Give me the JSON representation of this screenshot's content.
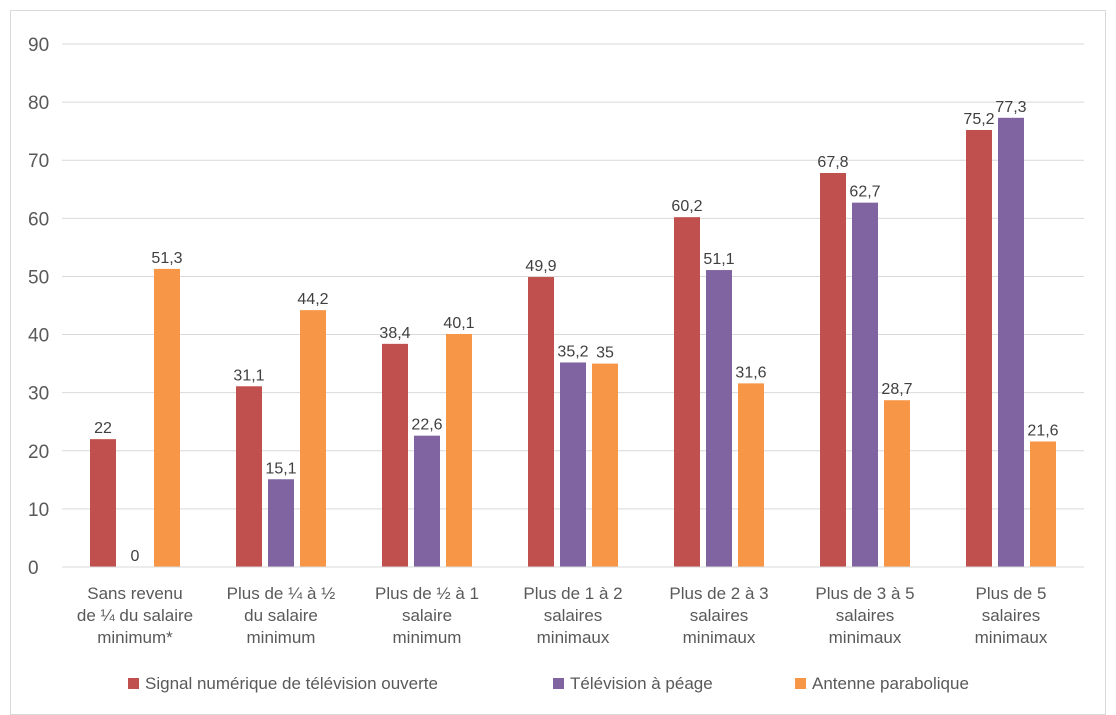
{
  "chart_data": {
    "type": "bar",
    "categories": [
      [
        "Sans revenu",
        "de ¼ du salaire",
        "minimum*"
      ],
      [
        "Plus de ¼ à ½",
        "du salaire",
        "minimum"
      ],
      [
        "Plus de ½ à 1",
        "salaire",
        "minimum"
      ],
      [
        "Plus de 1 à 2",
        "salaires",
        "minimaux"
      ],
      [
        "Plus de 2 à 3",
        "salaires",
        "minimaux"
      ],
      [
        "Plus de 3 à 5",
        "salaires",
        "minimaux"
      ],
      [
        "Plus de 5",
        "salaires",
        "minimaux"
      ]
    ],
    "series": [
      {
        "name": "Signal numérique de télévision ouverte",
        "color": "#c0504d",
        "values": [
          22,
          31.1,
          38.4,
          49.9,
          60.2,
          67.8,
          75.2
        ],
        "labels": [
          "22",
          "31,1",
          "38,4",
          "49,9",
          "60,2",
          "67,8",
          "75,2"
        ]
      },
      {
        "name": "Télévision à péage",
        "color": "#8064a2",
        "values": [
          0,
          15.1,
          22.6,
          35.2,
          51.1,
          62.7,
          77.3
        ],
        "labels": [
          "0",
          "15,1",
          "22,6",
          "35,2",
          "51,1",
          "62,7",
          "77,3"
        ]
      },
      {
        "name": "Antenne parabolique",
        "color": "#f79646",
        "values": [
          51.3,
          44.2,
          40.1,
          35,
          31.6,
          28.7,
          21.6
        ],
        "labels": [
          "51,3",
          "44,2",
          "40,1",
          "35",
          "31,6",
          "28,7",
          "21,6"
        ]
      }
    ],
    "yticks": [
      0,
      10,
      20,
      30,
      40,
      50,
      60,
      70,
      80,
      90
    ],
    "ylim": [
      0,
      90
    ],
    "grid": true,
    "gridColor": "#d9d9d9",
    "legend": "bottom",
    "title": "",
    "xlabel": "",
    "ylabel": ""
  }
}
